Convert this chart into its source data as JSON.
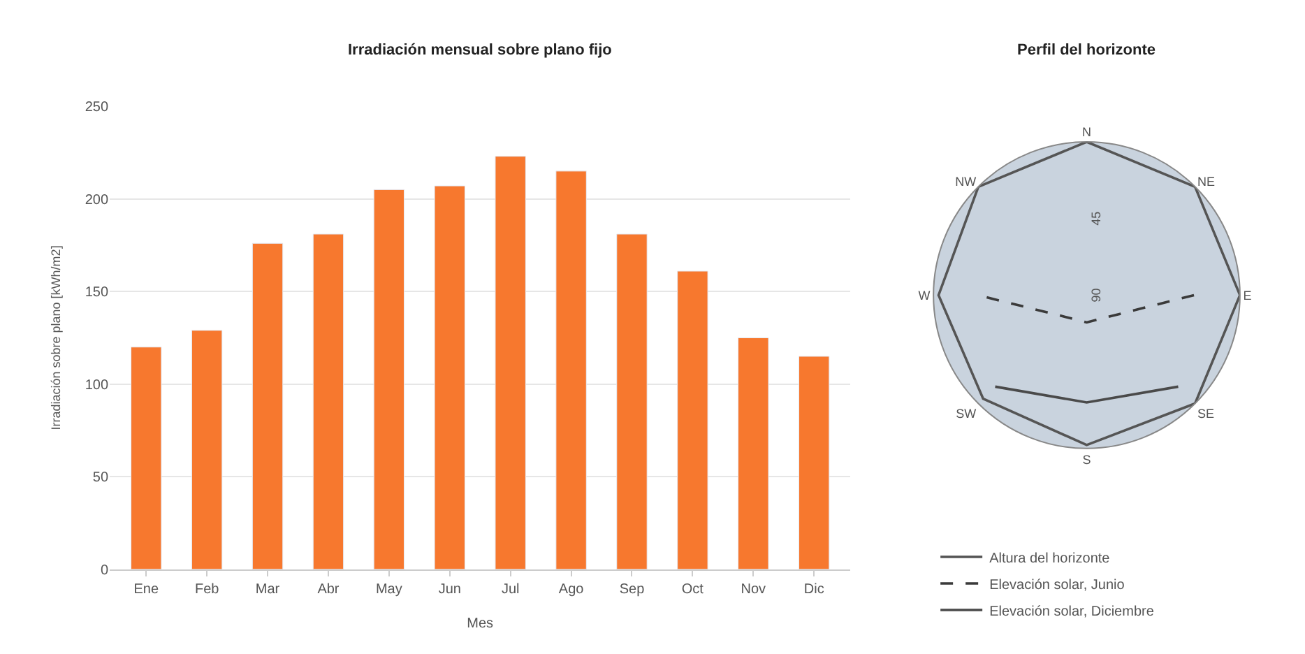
{
  "chart_data": [
    {
      "type": "bar",
      "title": "Irradiación mensual sobre plano fijo",
      "xlabel": "Mes",
      "ylabel": "Irradiación sobre plano [kWh/m2]",
      "categories": [
        "Ene",
        "Feb",
        "Mar",
        "Abr",
        "May",
        "Jun",
        "Jul",
        "Ago",
        "Sep",
        "Oct",
        "Nov",
        "Dic"
      ],
      "values": [
        120,
        129,
        176,
        181,
        205,
        207,
        223,
        215,
        181,
        161,
        125,
        115
      ],
      "color": "#f7782e",
      "ylim": [
        0,
        250
      ],
      "yticks": [
        0,
        50,
        100,
        150,
        200,
        250
      ],
      "grid": "y",
      "legend": false
    },
    {
      "type": "radar",
      "title": "Perfil del horizonte",
      "categories": [
        "N",
        "NE",
        "E",
        "SE",
        "S",
        "SW",
        "W",
        "NW"
      ],
      "series": [
        {
          "name": "Altura del horizonte",
          "color": "#555555",
          "line_style": "solid",
          "values": [
            0,
            0,
            0,
            0,
            2,
            4,
            3,
            0
          ]
        },
        {
          "name": "Elevación solar, Junio",
          "color": "#3a3a3a",
          "line_style": "dashed",
          "values": [
            null,
            null,
            27,
            72,
            74,
            72,
            26,
            null
          ]
        },
        {
          "name": "Elevación solar, Diciembre",
          "color": "#4a4a4a",
          "line_style": "solid",
          "values": [
            null,
            null,
            null,
            14,
            27,
            14,
            null,
            null
          ]
        }
      ],
      "ylim": [
        90,
        0
      ],
      "yticks": [
        45,
        90
      ],
      "grid": false,
      "legend": "bottom left"
    }
  ]
}
